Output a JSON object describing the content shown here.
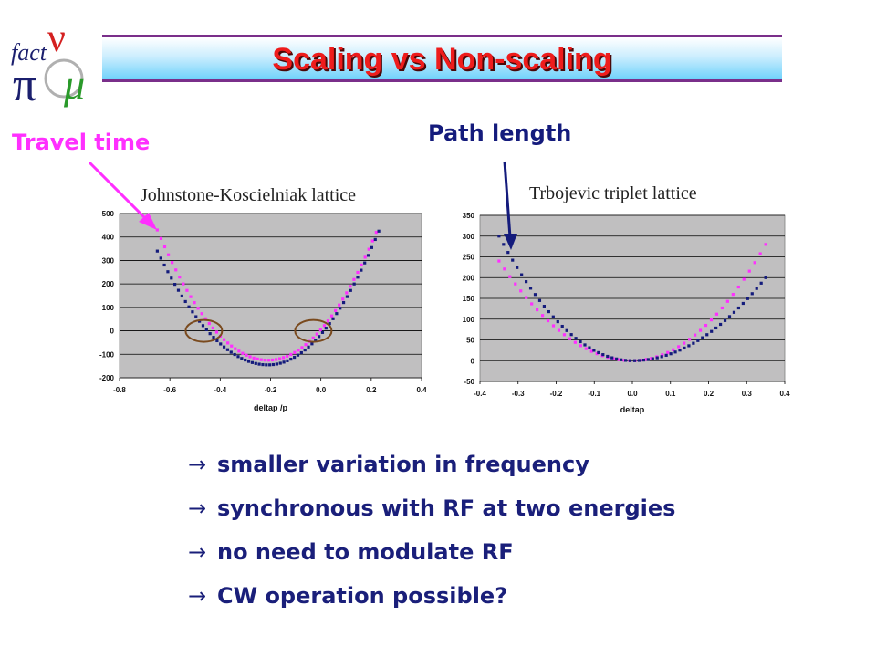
{
  "header": {
    "title": "Scaling vs Non-scaling",
    "logo_text": "fact"
  },
  "callouts": {
    "travel_time": "Travel time",
    "path_length": "Path length"
  },
  "bullets": [
    "smaller variation in frequency",
    "synchronous with RF at two energies",
    "no need to modulate RF",
    "CW operation possible?"
  ],
  "bullet_arrow": "→",
  "colors": {
    "title": "#ee1c1c",
    "travel": "#ff2fff",
    "path": "#141b7c",
    "bullet_text": "#1a1f7a",
    "plot_bg": "#c0bfc0",
    "series_pink": "#ff2fff",
    "series_navy": "#141b7c",
    "circle": "#7a4a1e"
  },
  "chart_data": [
    {
      "type": "scatter",
      "title": "Johnstone-Koscielniak lattice",
      "xlabel": "deltap /p",
      "ylabel": "",
      "xlim": [
        -0.8,
        0.4
      ],
      "ylim": [
        -200,
        500
      ],
      "xticks": [
        "-0.8",
        "-0.6",
        "-0.4",
        "-0.2",
        "0.0",
        "0.2",
        "0.4"
      ],
      "yticks": [
        "500",
        "400",
        "300",
        "200",
        "100",
        "0",
        "-100",
        "-200"
      ],
      "grid": true,
      "series": [
        {
          "color": "#ff2fff",
          "shape": "parabola",
          "x_range": [
            -0.65,
            0.22
          ],
          "vertex": [
            -0.21,
            -125
          ],
          "endpoints": [
            [
              -0.65,
              430
            ],
            [
              0.22,
              420
            ]
          ],
          "points": 60
        },
        {
          "color": "#141b7c",
          "shape": "parabola",
          "x_range": [
            -0.65,
            0.23
          ],
          "vertex": [
            -0.21,
            -145
          ],
          "endpoints": [
            [
              -0.65,
              340
            ],
            [
              0.23,
              425
            ]
          ],
          "points": 64
        }
      ],
      "annotations": [
        {
          "type": "circle",
          "x": -0.465,
          "y": 0
        },
        {
          "type": "circle",
          "x": -0.03,
          "y": 0
        }
      ]
    },
    {
      "type": "scatter",
      "title": "Trbojevic triplet lattice",
      "xlabel": "deltap",
      "ylabel": "",
      "xlim": [
        -0.4,
        0.4
      ],
      "ylim": [
        -50,
        350
      ],
      "xticks": [
        "-0.4",
        "-0.3",
        "-0.2",
        "-0.1",
        "0.0",
        "0.1",
        "0.2",
        "0.3",
        "0.4"
      ],
      "yticks": [
        "350",
        "300",
        "250",
        "200",
        "150",
        "100",
        "50",
        "0",
        "-50"
      ],
      "grid": true,
      "series": [
        {
          "color": "#ff2fff",
          "shape": "parabola",
          "x_range": [
            -0.35,
            0.35
          ],
          "vertex": [
            0.0,
            0
          ],
          "endpoints": [
            [
              -0.35,
              240
            ],
            [
              0.35,
              280
            ]
          ],
          "points": 50
        },
        {
          "color": "#141b7c",
          "shape": "parabola",
          "x_range": [
            -0.35,
            0.35
          ],
          "vertex": [
            0.0,
            0
          ],
          "endpoints": [
            [
              -0.35,
              300
            ],
            [
              0.35,
              200
            ]
          ],
          "points": 60
        }
      ]
    }
  ]
}
